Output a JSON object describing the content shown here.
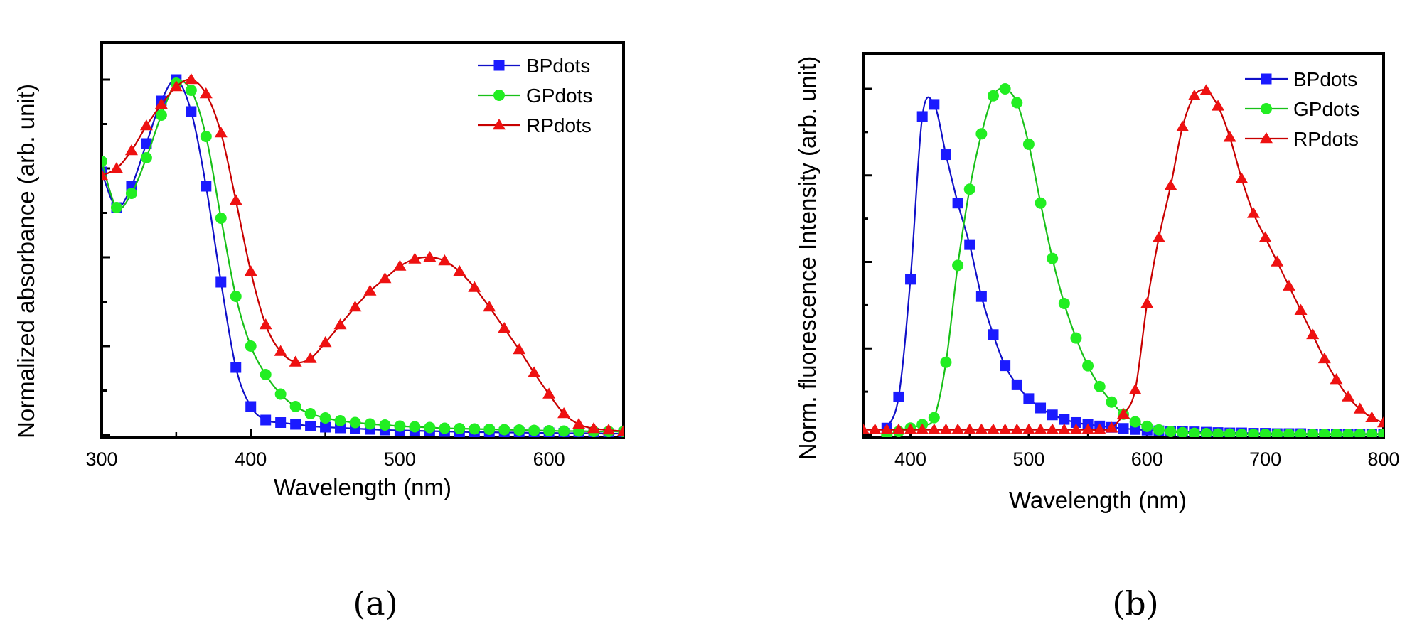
{
  "chart_data": [
    {
      "panel_label": "(a)",
      "type": "line",
      "title": "",
      "xlabel": "Wavelength (nm)",
      "ylabel": "Normalized absorbance (arb. unit)",
      "xlim": [
        300,
        650
      ],
      "ylim": [
        0,
        1.0
      ],
      "x_ticks": [
        300,
        400,
        500,
        600
      ],
      "x_tick_labels": [
        "300",
        "400",
        "500",
        "600"
      ],
      "y_ticks": [
        0,
        0.125,
        0.25,
        0.375,
        0.5,
        0.625,
        0.75,
        0.875,
        1.0
      ],
      "grid": false,
      "legend": "top-right",
      "series": [
        {
          "name": "BPdots",
          "color": "#1a1aff",
          "line_color": "#1010c8",
          "marker": "square",
          "x": [
            300,
            310,
            320,
            330,
            340,
            350,
            360,
            370,
            380,
            390,
            400,
            410,
            420,
            430,
            440,
            450,
            460,
            470,
            480,
            490,
            500,
            510,
            520,
            530,
            540,
            550,
            560,
            570,
            580,
            590,
            600,
            610,
            620,
            630,
            640,
            650
          ],
          "y": [
            0.74,
            0.64,
            0.7,
            0.82,
            0.94,
            1.0,
            0.91,
            0.7,
            0.43,
            0.19,
            0.08,
            0.042,
            0.035,
            0.03,
            0.025,
            0.022,
            0.02,
            0.018,
            0.016,
            0.014,
            0.013,
            0.012,
            0.011,
            0.01,
            0.009,
            0.008,
            0.008,
            0.007,
            0.007,
            0.006,
            0.006,
            0.005,
            0.005,
            0.005,
            0.004,
            0.004
          ]
        },
        {
          "name": "GPdots",
          "color": "#22ee22",
          "line_color": "#18c018",
          "marker": "circle",
          "x": [
            300,
            310,
            320,
            330,
            340,
            350,
            360,
            370,
            380,
            390,
            400,
            410,
            420,
            430,
            440,
            450,
            460,
            470,
            480,
            490,
            500,
            510,
            520,
            530,
            540,
            550,
            560,
            570,
            580,
            590,
            600,
            610,
            620,
            630,
            640,
            650
          ],
          "y": [
            0.77,
            0.64,
            0.68,
            0.78,
            0.9,
            0.99,
            0.97,
            0.84,
            0.61,
            0.39,
            0.25,
            0.17,
            0.115,
            0.08,
            0.06,
            0.048,
            0.04,
            0.035,
            0.031,
            0.028,
            0.025,
            0.023,
            0.021,
            0.019,
            0.018,
            0.017,
            0.016,
            0.015,
            0.014,
            0.013,
            0.012,
            0.011,
            0.011,
            0.01,
            0.01,
            0.01
          ]
        },
        {
          "name": "RPdots",
          "color": "#ee1111",
          "line_color": "#c80000",
          "marker": "triangle",
          "x": [
            300,
            310,
            320,
            330,
            340,
            350,
            360,
            370,
            380,
            390,
            400,
            410,
            420,
            430,
            440,
            450,
            460,
            470,
            480,
            490,
            500,
            510,
            520,
            530,
            540,
            550,
            560,
            570,
            580,
            590,
            600,
            610,
            620,
            630,
            640,
            650
          ],
          "y": [
            0.73,
            0.75,
            0.8,
            0.87,
            0.93,
            0.98,
            1.0,
            0.96,
            0.85,
            0.66,
            0.46,
            0.31,
            0.235,
            0.205,
            0.215,
            0.26,
            0.31,
            0.36,
            0.405,
            0.44,
            0.475,
            0.495,
            0.5,
            0.49,
            0.46,
            0.415,
            0.36,
            0.3,
            0.24,
            0.175,
            0.115,
            0.06,
            0.03,
            0.018,
            0.014,
            0.01
          ]
        }
      ]
    },
    {
      "panel_label": "(b)",
      "type": "line",
      "title": "",
      "xlabel": "Wavelength (nm)",
      "ylabel": "Norm. fluorescence Intensity (arb. unit)",
      "xlim": [
        360,
        800
      ],
      "ylim": [
        0,
        1.0
      ],
      "x_ticks": [
        400,
        500,
        600,
        700,
        800
      ],
      "x_tick_labels": [
        "400",
        "500",
        "600",
        "700",
        "800"
      ],
      "y_ticks": [
        0,
        0.125,
        0.25,
        0.375,
        0.5,
        0.625,
        0.75,
        0.875,
        1.0
      ],
      "grid": false,
      "legend": "top-right",
      "series": [
        {
          "name": "BPdots",
          "color": "#1a1aff",
          "line_color": "#1010c8",
          "marker": "square",
          "x": [
            380,
            390,
            400,
            410,
            420,
            430,
            440,
            450,
            460,
            470,
            480,
            490,
            500,
            510,
            520,
            530,
            540,
            550,
            560,
            570,
            580,
            590,
            600,
            610,
            620,
            630,
            640,
            650,
            660,
            670,
            680,
            690,
            700,
            710,
            720,
            730,
            740,
            750,
            760,
            770,
            780,
            790,
            800
          ],
          "y": [
            0.02,
            0.11,
            0.45,
            0.92,
            0.955,
            0.81,
            0.67,
            0.55,
            0.4,
            0.29,
            0.2,
            0.145,
            0.105,
            0.078,
            0.058,
            0.045,
            0.036,
            0.03,
            0.026,
            0.022,
            0.019,
            0.016,
            0.014,
            0.012,
            0.011,
            0.01,
            0.009,
            0.008,
            0.007,
            0.006,
            0.006,
            0.005,
            0.005,
            0.004,
            0.004,
            0.004,
            0.003,
            0.003,
            0.003,
            0.003,
            0.003,
            0.003,
            0.003
          ]
        },
        {
          "name": "GPdots",
          "color": "#22ee22",
          "line_color": "#18c018",
          "marker": "circle",
          "x": [
            380,
            390,
            400,
            410,
            420,
            430,
            440,
            450,
            460,
            470,
            480,
            490,
            500,
            510,
            520,
            530,
            540,
            550,
            560,
            570,
            580,
            590,
            600,
            610,
            620,
            630,
            640,
            650,
            660,
            670,
            680,
            690,
            700,
            710,
            720,
            730,
            740,
            750,
            760,
            770,
            780,
            790,
            800
          ],
          "y": [
            0.0,
            0.01,
            0.02,
            0.03,
            0.05,
            0.21,
            0.49,
            0.71,
            0.87,
            0.98,
            1.0,
            0.96,
            0.84,
            0.67,
            0.51,
            0.38,
            0.28,
            0.2,
            0.14,
            0.095,
            0.06,
            0.038,
            0.025,
            0.015,
            0.01,
            0.007,
            0.005,
            0.004,
            0.003,
            0.003,
            0.002,
            0.002,
            0.002,
            0.002,
            0.002,
            0.002,
            0.002,
            0.002,
            0.002,
            0.002,
            0.002,
            0.002,
            0.002
          ]
        },
        {
          "name": "RPdots",
          "color": "#ee1111",
          "line_color": "#c80000",
          "marker": "triangle",
          "x": [
            360,
            370,
            380,
            390,
            400,
            410,
            420,
            430,
            440,
            450,
            460,
            470,
            480,
            490,
            500,
            510,
            520,
            530,
            540,
            550,
            560,
            570,
            580,
            590,
            600,
            610,
            620,
            630,
            640,
            650,
            660,
            670,
            680,
            690,
            700,
            710,
            720,
            730,
            740,
            750,
            760,
            770,
            780,
            790,
            800
          ],
          "y": [
            0.015,
            0.015,
            0.015,
            0.015,
            0.015,
            0.015,
            0.015,
            0.015,
            0.015,
            0.015,
            0.015,
            0.015,
            0.015,
            0.015,
            0.015,
            0.015,
            0.015,
            0.015,
            0.015,
            0.015,
            0.015,
            0.02,
            0.06,
            0.13,
            0.38,
            0.57,
            0.72,
            0.89,
            0.98,
            0.995,
            0.95,
            0.86,
            0.74,
            0.64,
            0.57,
            0.5,
            0.43,
            0.36,
            0.29,
            0.22,
            0.16,
            0.11,
            0.075,
            0.05,
            0.035
          ]
        }
      ]
    }
  ]
}
